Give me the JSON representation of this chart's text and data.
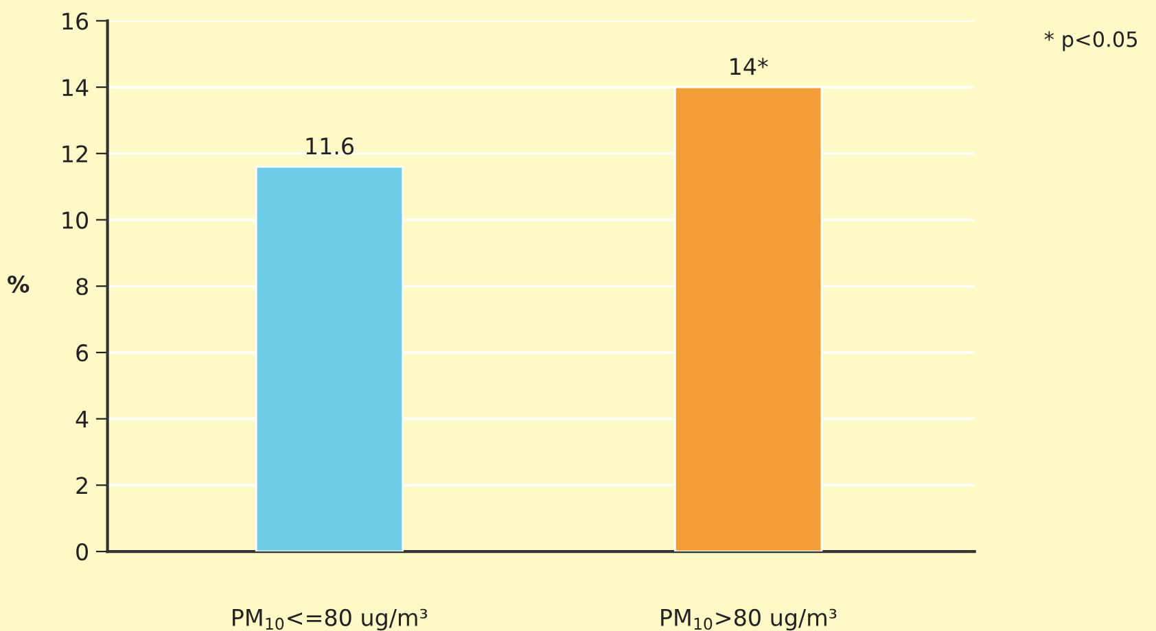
{
  "chart_data": {
    "type": "bar",
    "categories": [
      "PM$_{10}$<=80 ug/m³",
      "PM$_{10}$>80 ug/m³"
    ],
    "values": [
      11.6,
      14
    ],
    "colors": [
      "#6dcde8",
      "#f29d35"
    ],
    "value_labels": [
      "11.6",
      "14*"
    ],
    "ylabel": "%",
    "ylim": [
      0,
      16
    ],
    "yticks": [
      0,
      2,
      4,
      6,
      8,
      10,
      12,
      14,
      16
    ],
    "grid": "y",
    "annotations": [
      "* p<0.05"
    ]
  }
}
